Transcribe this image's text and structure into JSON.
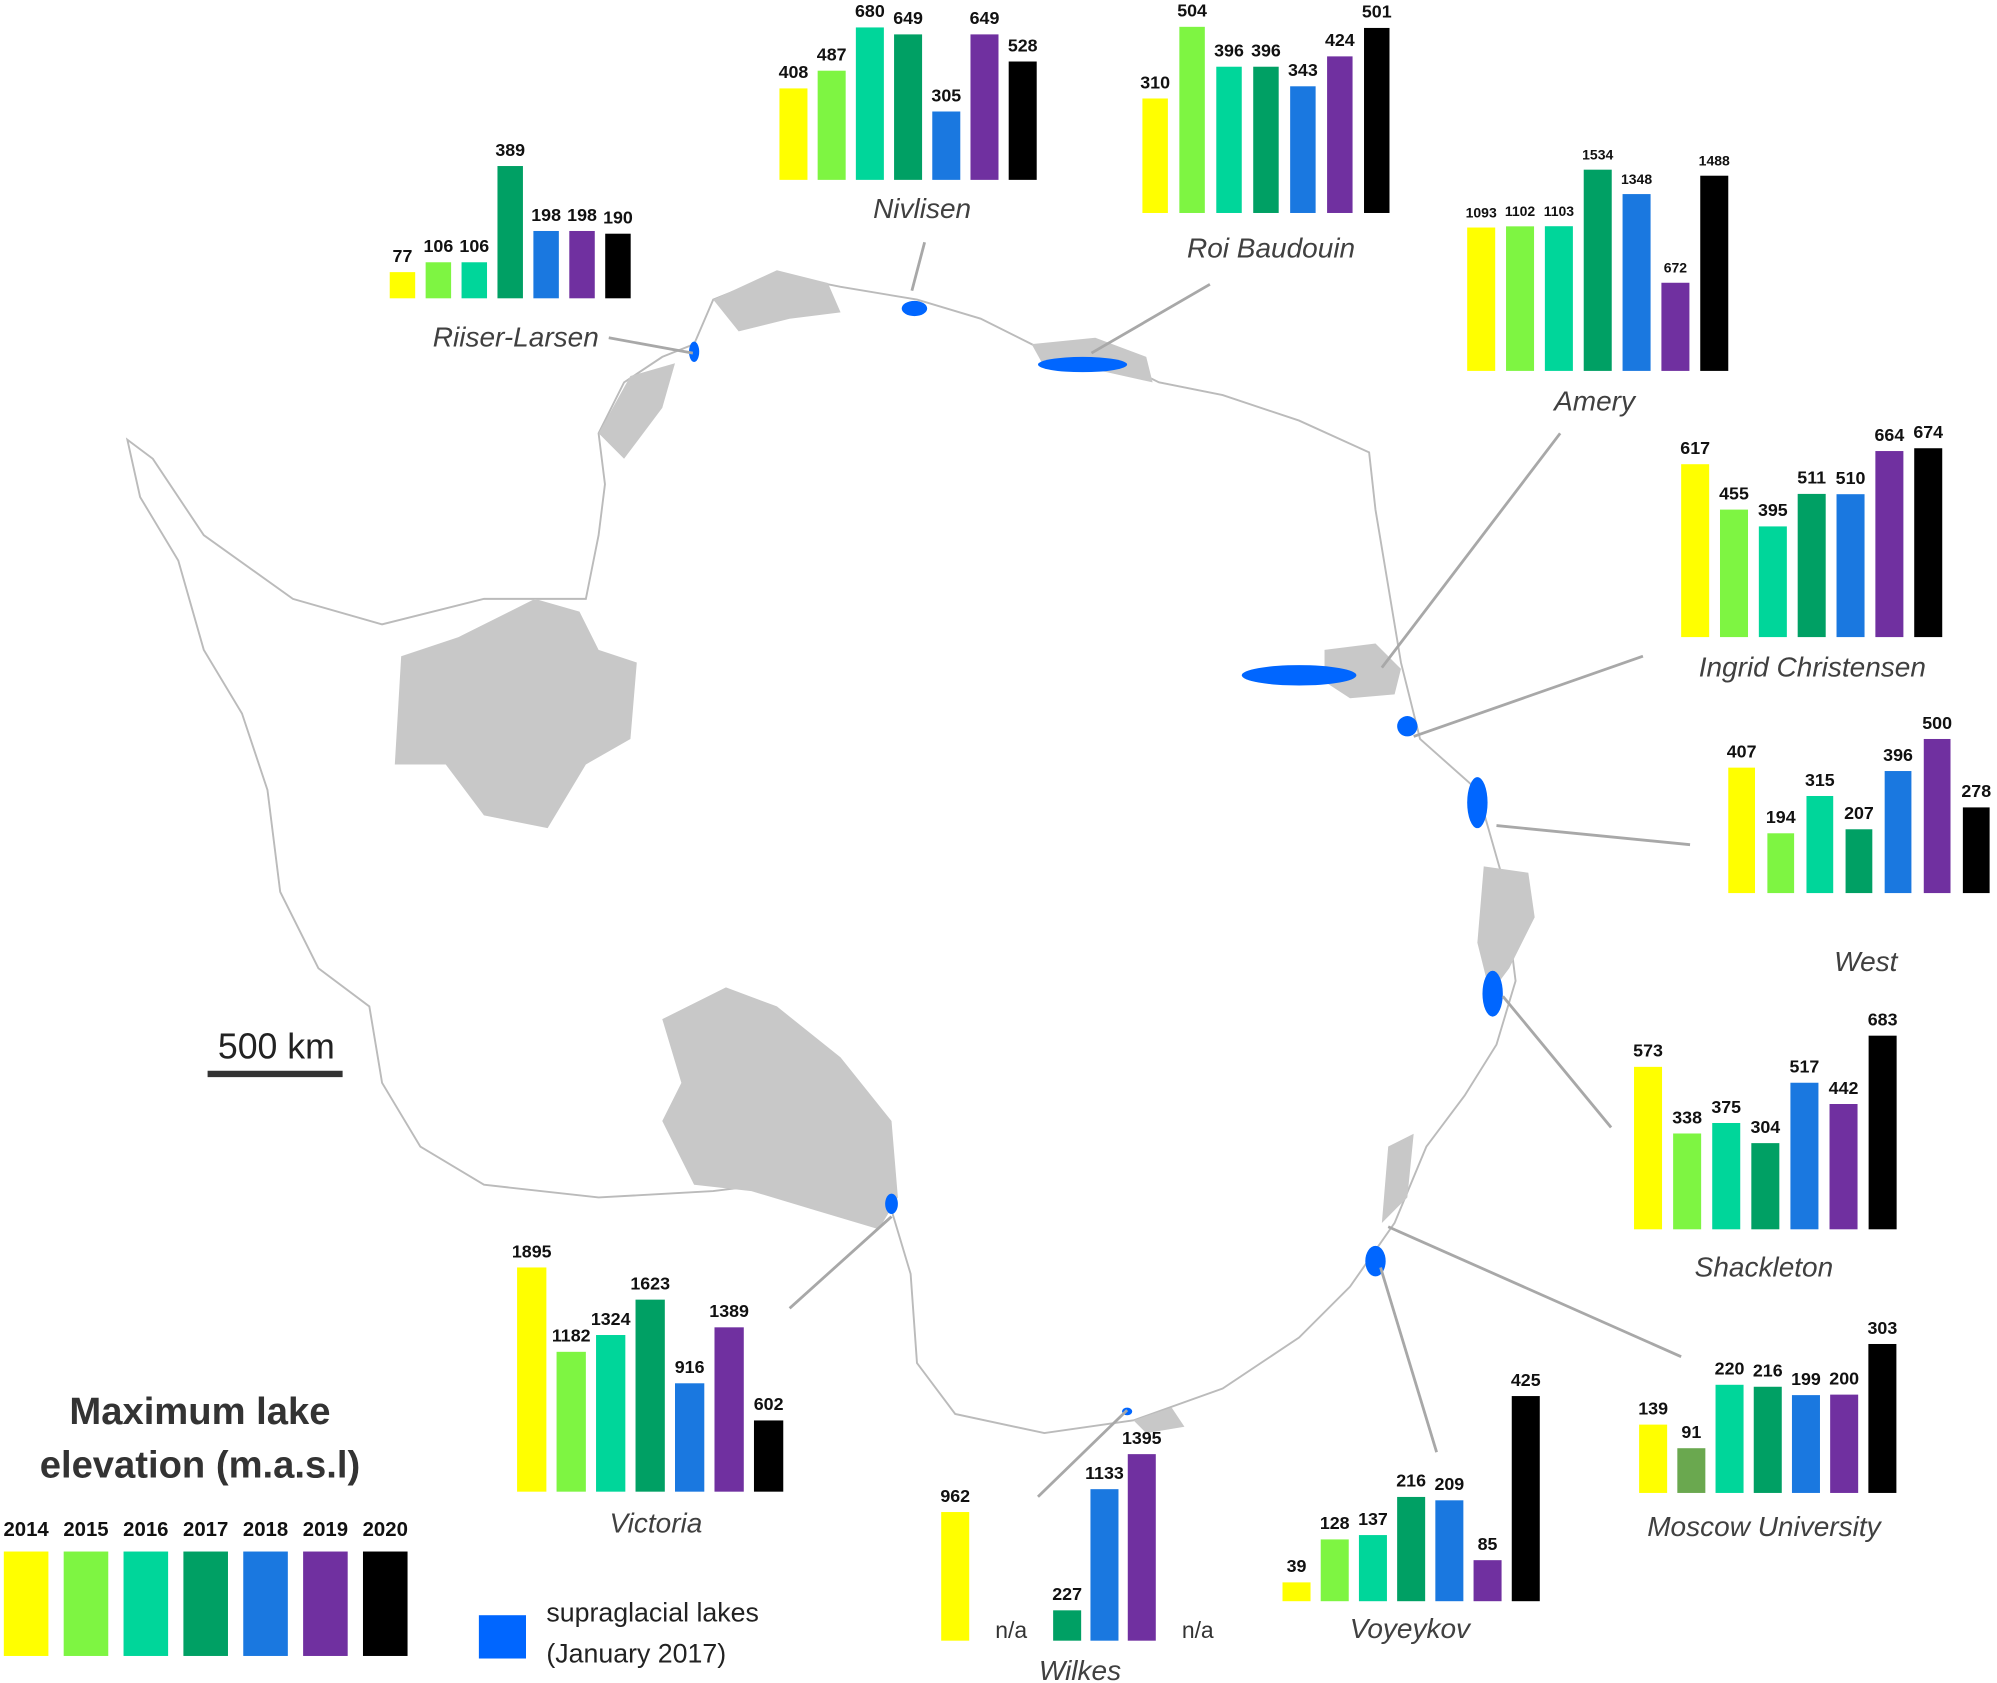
{
  "legend": {
    "title_lines": [
      "Maximum lake",
      "elevation (m.a.s.l)"
    ],
    "items": [
      {
        "name": "2014",
        "color": "#ffff00"
      },
      {
        "name": "2015",
        "color": "#7ef542"
      },
      {
        "name": "2016",
        "color": "#00d69a"
      },
      {
        "name": "2017",
        "color": "#00a064"
      },
      {
        "name": "2018",
        "color": "#1a78e0"
      },
      {
        "name": "2019",
        "color": "#7030a0"
      },
      {
        "name": "2020",
        "color": "#000000"
      }
    ]
  },
  "chart_data": [
    {
      "type": "bar",
      "title": "Riiser-Larsen",
      "values": [
        77,
        106,
        106,
        389,
        198,
        198,
        190
      ]
    },
    {
      "type": "bar",
      "title": "Nivlisen",
      "values": [
        408,
        487,
        680,
        649,
        305,
        649,
        528
      ]
    },
    {
      "type": "bar",
      "title": "Roi Baudouin",
      "values": [
        310,
        504,
        396,
        396,
        343,
        424,
        501
      ]
    },
    {
      "type": "bar",
      "title": "Amery",
      "values": [
        1093,
        1102,
        1103,
        1534,
        1348,
        672,
        1488
      ]
    },
    {
      "type": "bar",
      "title": "Ingrid Christensen",
      "values": [
        617,
        455,
        395,
        511,
        510,
        664,
        674
      ]
    },
    {
      "type": "bar",
      "title": "West",
      "values": [
        407,
        194,
        315,
        207,
        396,
        500,
        278
      ]
    },
    {
      "type": "bar",
      "title": "Shackleton",
      "values": [
        573,
        338,
        375,
        304,
        517,
        442,
        683
      ]
    },
    {
      "type": "bar",
      "title": "Moscow University",
      "values": [
        139,
        91,
        220,
        216,
        199,
        200,
        303
      ],
      "colors": [
        "#ffff00",
        "#6aa84f",
        "#00d69a",
        "#00a064",
        "#1a78e0",
        "#7030a0",
        "#000000"
      ]
    },
    {
      "type": "bar",
      "title": "Voyeykov",
      "values": [
        39,
        128,
        137,
        216,
        209,
        85,
        425
      ]
    },
    {
      "type": "bar",
      "title": "Wilkes",
      "values": [
        962,
        null,
        null,
        227,
        1133,
        1395,
        null
      ],
      "value_labels": [
        "962",
        "n/a",
        null,
        "227",
        "1133",
        "1395",
        "n/a"
      ]
    },
    {
      "type": "bar",
      "title": "Victoria",
      "values": [
        1895,
        1182,
        1324,
        1623,
        916,
        1389,
        602
      ]
    }
  ],
  "lakes_legend": {
    "lines": [
      "supraglacial lakes",
      "(January 2017)"
    ],
    "color": "#0066ff"
  },
  "scale_bar": {
    "label": "500 km"
  }
}
